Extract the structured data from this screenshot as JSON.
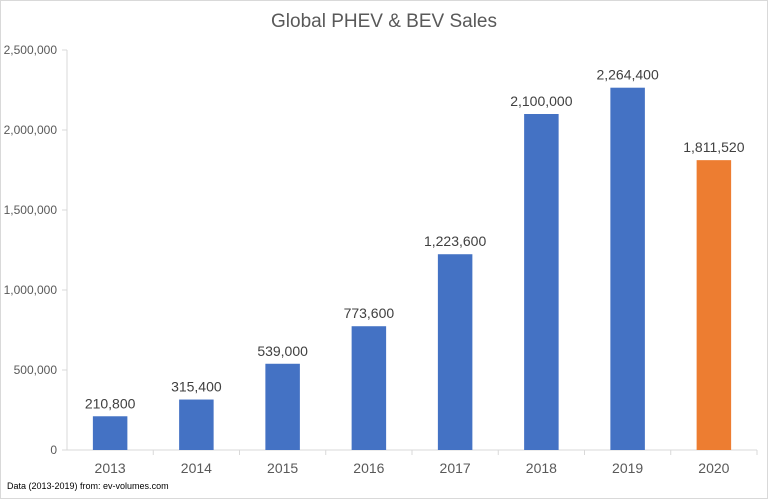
{
  "chart_data": {
    "type": "bar",
    "title": "Global PHEV & BEV Sales",
    "categories": [
      "2013",
      "2014",
      "2015",
      "2016",
      "2017",
      "2018",
      "2019",
      "2020"
    ],
    "values": [
      210800,
      315400,
      539000,
      773600,
      1223600,
      2100000,
      2264400,
      1811520
    ],
    "data_labels": [
      "210,800",
      "315,400",
      "539,000",
      "773,600",
      "1,223,600",
      "2,100,000",
      "2,264,400",
      "1,811,520"
    ],
    "bar_colors": [
      "#4472c4",
      "#4472c4",
      "#4472c4",
      "#4472c4",
      "#4472c4",
      "#4472c4",
      "#4472c4",
      "#ed7d31"
    ],
    "ylim": [
      0,
      2500000
    ],
    "yticks": [
      0,
      500000,
      1000000,
      1500000,
      2000000,
      2500000
    ],
    "ytick_labels": [
      "0",
      "500,000",
      "1,000,000",
      "1,500,000",
      "2,000,000",
      "2,500,000"
    ],
    "grid": false,
    "legend": "none"
  },
  "source_note": "Data (2013-2019) from: ev-volumes.com",
  "colors": {
    "axis": "#d9d9d9",
    "text": "#595959"
  }
}
